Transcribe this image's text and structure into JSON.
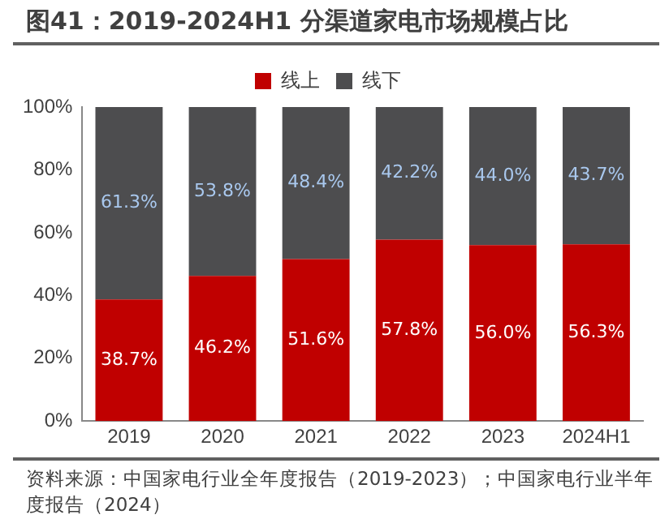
{
  "chart_data": {
    "type": "bar",
    "title": "图41：2019-2024H1 分渠道家电市场规模占比",
    "categories": [
      "2019",
      "2020",
      "2021",
      "2022",
      "2023",
      "2024H1"
    ],
    "stacked": true,
    "legend": "top",
    "grid": false,
    "series": [
      {
        "name": "线上",
        "color": "#c00000",
        "values": [
          38.7,
          46.2,
          51.6,
          57.8,
          56.0,
          56.3
        ],
        "value_labels": [
          "38.7%",
          "46.2%",
          "51.6%",
          "57.8%",
          "56.0%",
          "56.3%"
        ]
      },
      {
        "name": "线下",
        "color": "#4d4d4f",
        "values": [
          61.3,
          53.8,
          48.4,
          42.2,
          44.0,
          43.7
        ],
        "value_labels": [
          "61.3%",
          "53.8%",
          "48.4%",
          "42.2%",
          "44.0%",
          "43.7%"
        ]
      }
    ],
    "ylim": [
      0,
      100
    ],
    "yticks": [
      {
        "value": 0,
        "label": "0%"
      },
      {
        "value": 20,
        "label": "20%"
      },
      {
        "value": 40,
        "label": "40%"
      },
      {
        "value": 60,
        "label": "60%"
      },
      {
        "value": 80,
        "label": "80%"
      },
      {
        "value": 100,
        "label": "100%"
      }
    ],
    "annotations": [
      "资料来源：中国家电行业全年度报告（2019-2023）；中国家电行业半年度报告（2024）"
    ]
  }
}
